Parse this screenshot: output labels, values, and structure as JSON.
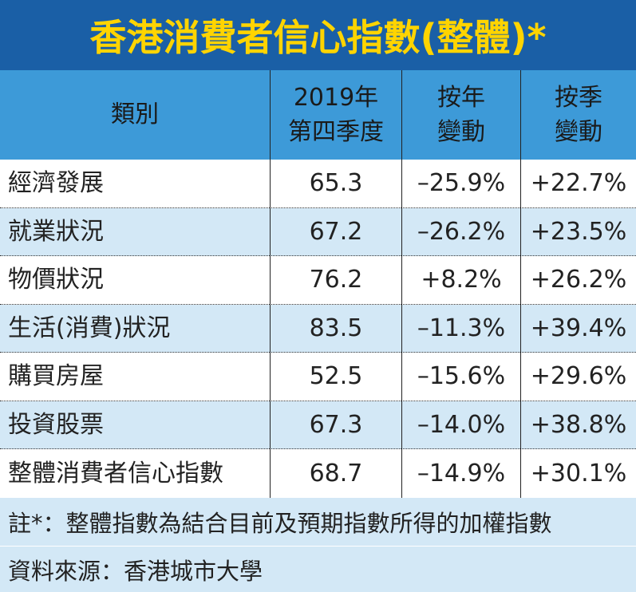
{
  "title": "香港消費者信心指數(整體)*",
  "table": {
    "header": [
      [
        "類別"
      ],
      [
        "2019年",
        "第四季度"
      ],
      [
        "按年",
        "變動"
      ],
      [
        "按季",
        "變動"
      ]
    ],
    "rows": [
      [
        "經濟發展",
        "65.3",
        "–25.9%",
        "+22.7%"
      ],
      [
        "就業狀況",
        "67.2",
        "–26.2%",
        "+23.5%"
      ],
      [
        "物價狀況",
        "76.2",
        "+8.2%",
        "+26.2%"
      ],
      [
        "生活(消費)狀況",
        "83.5",
        "–11.3%",
        "+39.4%"
      ],
      [
        "購買房屋",
        "52.5",
        "–15.6%",
        "+29.6%"
      ],
      [
        "投資股票",
        "67.3",
        "–14.0%",
        "+38.8%"
      ],
      [
        "整體消費者信心指數",
        "68.7",
        "–14.9%",
        "+30.1%"
      ]
    ]
  },
  "footer": {
    "note": "註*：整體指數為結合目前及預期指數所得的加權指數",
    "source": "資料來源：香港城市大學"
  }
}
